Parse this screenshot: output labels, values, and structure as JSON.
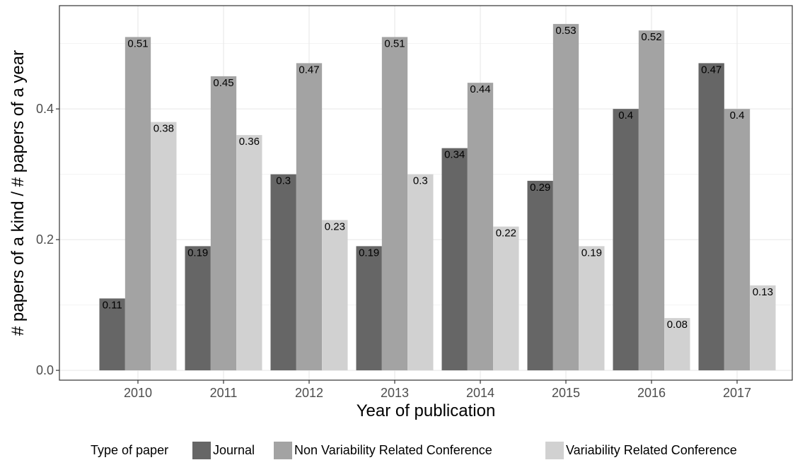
{
  "chart_data": {
    "type": "bar",
    "xlabel": "Year of publication",
    "ylabel": "# papers of a kind / # papers of a year",
    "categories": [
      "2010",
      "2011",
      "2012",
      "2013",
      "2014",
      "2015",
      "2016",
      "2017"
    ],
    "series": [
      {
        "name": "Journal",
        "color": "#666666",
        "values": [
          0.11,
          0.19,
          0.3,
          0.19,
          0.34,
          0.29,
          0.4,
          0.47
        ],
        "labels": [
          "0.11",
          "0.19",
          "0.3",
          "0.19",
          "0.34",
          "0.29",
          "0.4",
          "0.47"
        ]
      },
      {
        "name": "Non Variability Related Conference",
        "color": "#a3a3a3",
        "values": [
          0.51,
          0.45,
          0.47,
          0.51,
          0.44,
          0.53,
          0.52,
          0.4
        ],
        "labels": [
          "0.51",
          "0.45",
          "0.47",
          "0.51",
          "0.44",
          "0.53",
          "0.52",
          "0.4"
        ]
      },
      {
        "name": "Variability Related Conference",
        "color": "#d1d1d1",
        "values": [
          0.38,
          0.36,
          0.23,
          0.3,
          0.22,
          0.19,
          0.08,
          0.13
        ],
        "labels": [
          "0.38",
          "0.36",
          "0.23",
          "0.3",
          "0.22",
          "0.19",
          "0.08",
          "0.13"
        ]
      }
    ],
    "yticks": [
      0.0,
      0.2,
      0.4
    ],
    "ytick_labels": [
      "0.0",
      "0.2",
      "0.4"
    ],
    "ylim": [
      -0.015,
      0.558
    ],
    "grid": true,
    "legend": {
      "title": "Type of paper",
      "placement": "bottom"
    }
  }
}
